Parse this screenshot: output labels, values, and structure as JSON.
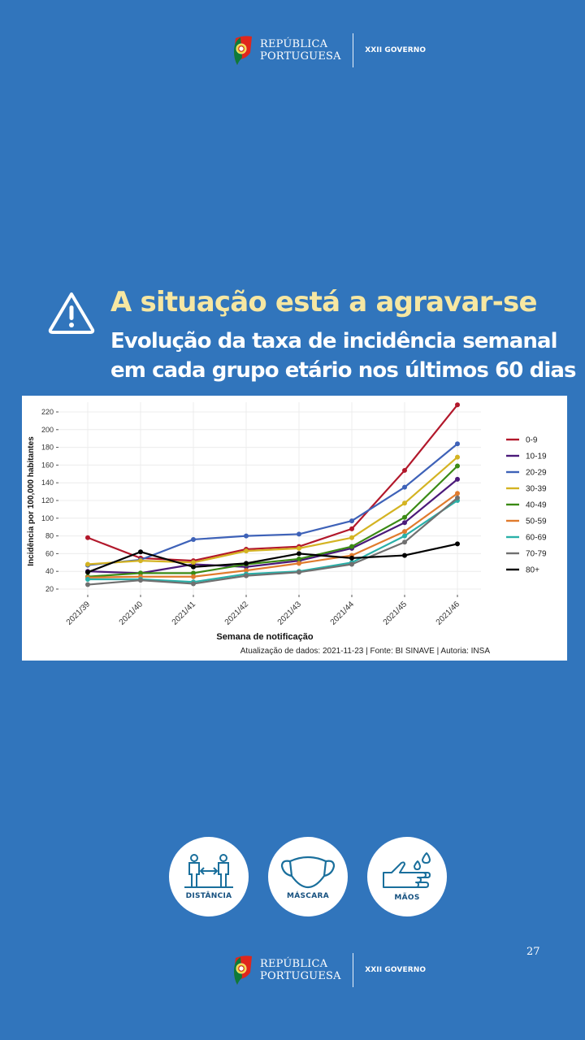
{
  "header": {
    "logo_line1": "REPÚBLICA",
    "logo_line2": "PORTUGUESA",
    "government": "XXII GOVERNO"
  },
  "footer": {
    "logo_line1": "REPÚBLICA",
    "logo_line2": "PORTUGUESA",
    "government": "XXII GOVERNO",
    "page_number": "27"
  },
  "headline": {
    "icon": "warning-triangle-icon",
    "title": "A situação está a agravar-se",
    "subtitle_line1": "Evolução da taxa de incidência semanal",
    "subtitle_line2": "em cada grupo etário nos últimos 60 dias"
  },
  "colors": {
    "background": "#3175bc",
    "title": "#f6e7a2",
    "badge_text": "#15507f"
  },
  "badges": [
    {
      "label": "DISTÂNCIA",
      "icon": "social-distance-icon"
    },
    {
      "label": "MÁSCARA",
      "icon": "face-mask-icon"
    },
    {
      "label": "MÃOS",
      "icon": "hand-washing-icon"
    }
  ],
  "chart_data": {
    "type": "line",
    "title": "",
    "xlabel": "Semana de notificação",
    "ylabel": "Incidência por 100,000 habitantes",
    "caption": "Atualização de dados: 2021-11-23 | Fonte: BI SINAVE | Autoria: INSA",
    "ylim": [
      20,
      225
    ],
    "yticks": [
      20,
      40,
      60,
      80,
      100,
      120,
      140,
      160,
      180,
      200,
      220
    ],
    "grid": true,
    "legend_position": "right",
    "categories": [
      "2021/39",
      "2021/40",
      "2021/41",
      "2021/42",
      "2021/43",
      "2021/44",
      "2021/45",
      "2021/46"
    ],
    "series": [
      {
        "name": "0-9",
        "color": "#b2182b",
        "values": [
          78,
          55,
          52,
          65,
          68,
          88,
          154,
          228
        ]
      },
      {
        "name": "10-19",
        "color": "#4b1a7a",
        "values": [
          40,
          38,
          48,
          45,
          52,
          66,
          95,
          144
        ]
      },
      {
        "name": "20-29",
        "color": "#3e62b8",
        "values": [
          47,
          53,
          76,
          80,
          82,
          97,
          135,
          184
        ]
      },
      {
        "name": "30-39",
        "color": "#d4b322",
        "values": [
          48,
          52,
          50,
          63,
          66,
          78,
          117,
          169
        ]
      },
      {
        "name": "40-49",
        "color": "#3a8a14",
        "values": [
          34,
          38,
          38,
          48,
          54,
          68,
          101,
          159
        ]
      },
      {
        "name": "50-59",
        "color": "#e07b2d",
        "values": [
          33,
          34,
          34,
          41,
          49,
          58,
          85,
          128
        ]
      },
      {
        "name": "60-69",
        "color": "#2ab0a8",
        "values": [
          31,
          31,
          28,
          37,
          40,
          50,
          80,
          120
        ]
      },
      {
        "name": "70-79",
        "color": "#707070",
        "values": [
          25,
          30,
          26,
          35,
          39,
          48,
          73,
          123
        ]
      },
      {
        "name": "80+",
        "color": "#000000",
        "values": [
          39,
          62,
          45,
          49,
          60,
          55,
          58,
          71
        ]
      }
    ]
  }
}
